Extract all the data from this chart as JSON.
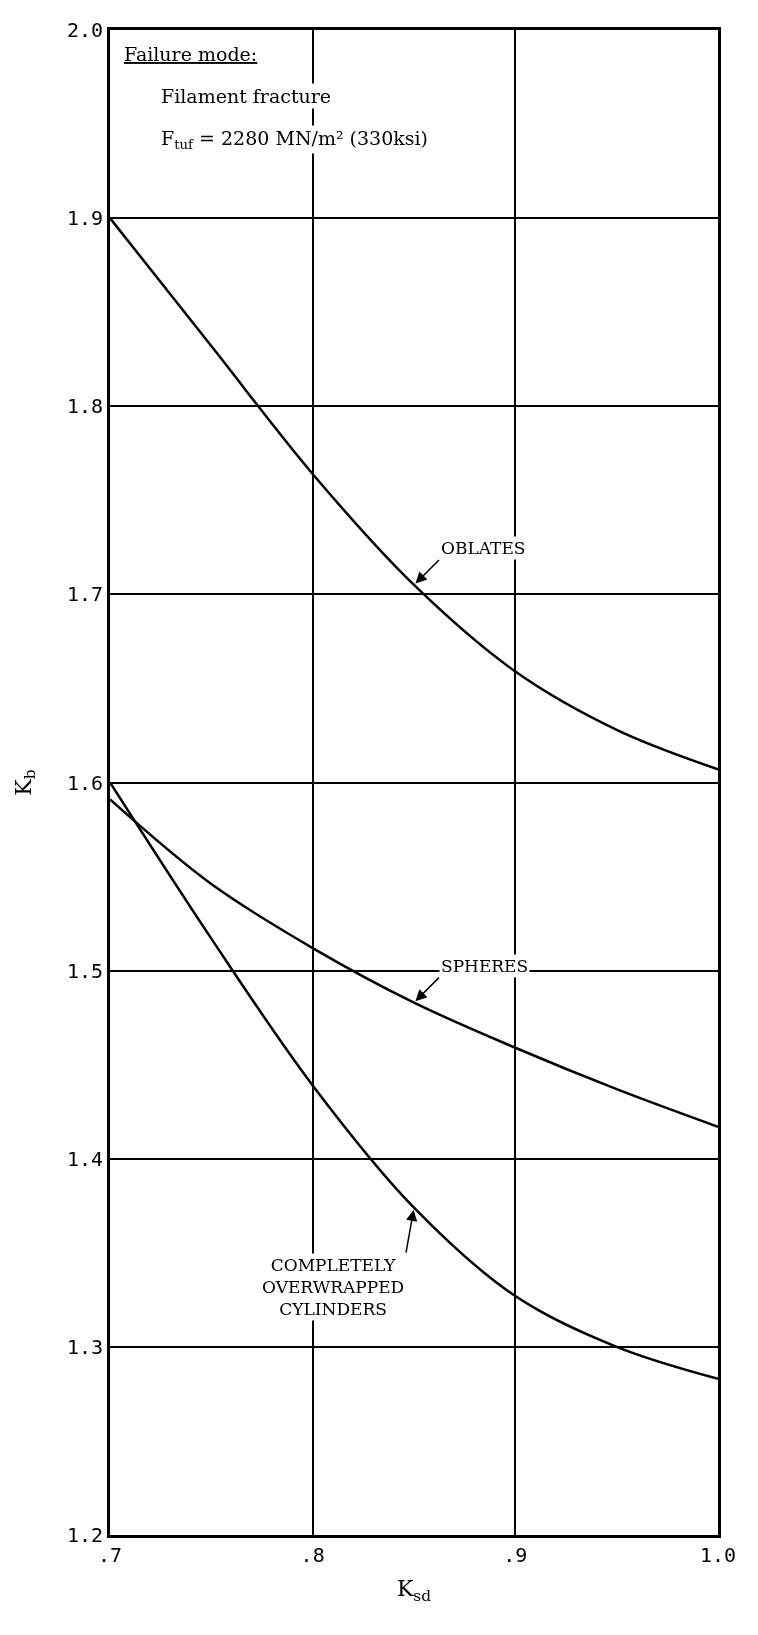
{
  "chart_data": {
    "type": "line",
    "xlabel": "K$_{sd}$",
    "ylabel": "K$_{b}$",
    "x": [
      0.7,
      0.75,
      0.8,
      0.85,
      0.9,
      0.95,
      1.0
    ],
    "series": [
      {
        "name": "OBLATES",
        "color": "#000000",
        "values": [
          1.9,
          1.832,
          1.764,
          1.705,
          1.659,
          1.628,
          1.607
        ]
      },
      {
        "name": "SPHERES",
        "color": "#000000",
        "values": [
          1.591,
          1.546,
          1.512,
          1.483,
          1.459,
          1.437,
          1.417
        ]
      },
      {
        "name": "COMPLETELY\nOVERWRAPPED\nCYLINDERS",
        "color": "#000000",
        "values": [
          1.6,
          1.517,
          1.439,
          1.374,
          1.327,
          1.3,
          1.283
        ]
      }
    ],
    "annotations": [
      "Failure mode:",
      "Filament fracture",
      "F$_{tuf}$ = 2280 MN/m² (330ksi)"
    ],
    "xlim": [
      0.7,
      1.0
    ],
    "xticks": [
      {
        "value": 0.7,
        "label": ".7"
      },
      {
        "value": 0.8,
        "label": ".8"
      },
      {
        "value": 0.9,
        "label": ".9"
      },
      {
        "value": 1.0,
        "label": "1.0"
      }
    ],
    "ylim": [
      1.2,
      2.0
    ],
    "yticks": [
      1.2,
      1.3,
      1.4,
      1.5,
      1.6,
      1.7,
      1.8,
      1.9,
      {
        "value": 2.0,
        "label": "2.0"
      }
    ],
    "grid": true,
    "legend": false,
    "marker": "none",
    "line_style": "solid"
  }
}
